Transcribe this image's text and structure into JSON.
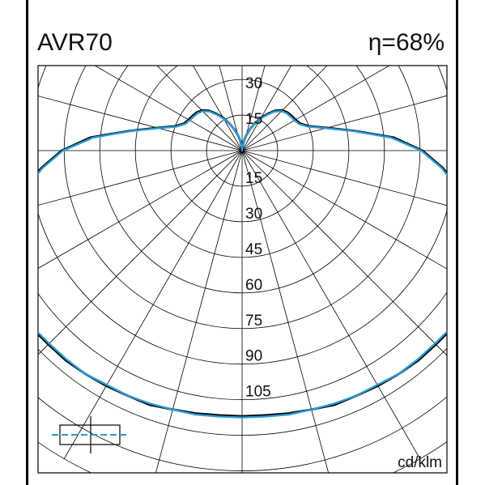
{
  "header": {
    "title": "AVR70",
    "efficiency": "η=68%"
  },
  "chart_data": {
    "type": "polar",
    "unit": "cd/klm",
    "radial_ticks_upper": [
      "30",
      "15"
    ],
    "radial_ticks_lower": [
      "15",
      "30",
      "45",
      "60",
      "75",
      "90",
      "105"
    ],
    "radial_step": 15,
    "radial_max": 150,
    "angle_step_deg": 15,
    "grid": true,
    "colors": {
      "series_c0_c180": "#000000",
      "series_c90_c270": "#2a9bd6",
      "grid": "#000000"
    },
    "series": [
      {
        "angle_deg": [
          0,
          5,
          10,
          15,
          20,
          25,
          30,
          35,
          40,
          45,
          50,
          55,
          60,
          65,
          70,
          75,
          80,
          85,
          90,
          95,
          100,
          105,
          110,
          115,
          120,
          125,
          130,
          135,
          140,
          145,
          150,
          155,
          160,
          165,
          170,
          175,
          180
        ],
        "values": [
          112,
          112,
          112.5,
          113,
          114,
          114,
          114.5,
          115,
          115.5,
          115.5,
          116,
          115.5,
          114,
          111,
          106,
          100,
          93,
          85,
          76,
          64,
          48,
          37,
          30,
          27,
          26,
          25.5,
          25,
          24,
          22,
          19,
          16,
          12.5,
          9.5,
          6.5,
          4,
          1.5,
          0
        ]
      },
      {
        "angle_deg": [
          0,
          5,
          10,
          15,
          20,
          25,
          30,
          35,
          40,
          45,
          50,
          55,
          60,
          65,
          70,
          75,
          80,
          85,
          90,
          95,
          100,
          105,
          110,
          115,
          120,
          125,
          130,
          135,
          140,
          145,
          150,
          155,
          160,
          165,
          170,
          175,
          180
        ],
        "values": [
          112.5,
          112.5,
          113,
          113,
          113.5,
          114,
          114,
          115,
          115,
          115,
          115.5,
          115.5,
          113.5,
          110,
          105.5,
          99.5,
          92.5,
          84.5,
          75.5,
          63,
          47.5,
          36.5,
          29.5,
          26.5,
          25.5,
          25,
          24.5,
          23.5,
          21.5,
          18.5,
          15.5,
          12.5,
          9.5,
          6.5,
          4,
          1.5,
          0
        ]
      }
    ]
  }
}
